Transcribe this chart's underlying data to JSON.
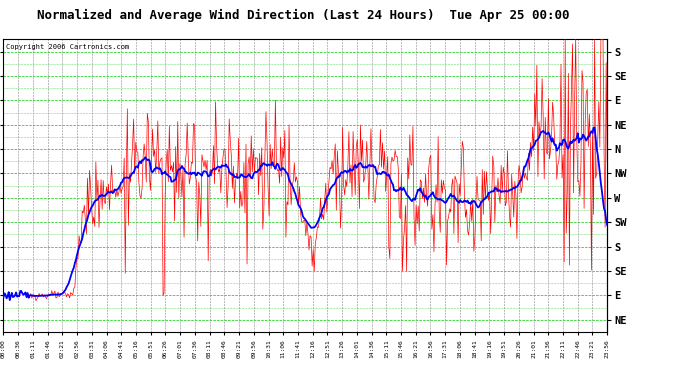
{
  "title": "Normalized and Average Wind Direction (Last 24 Hours)  Tue Apr 25 00:00",
  "copyright": "Copyright 2006 Cartronics.com",
  "outer_bg": "#ffffff",
  "plot_bg": "#ffffff",
  "grid_color_h": "#00cc00",
  "grid_color_v": "#009900",
  "title_color": "#000000",
  "red_line_color": "#ff0000",
  "blue_line_color": "#0000ff",
  "y_labels": [
    "S",
    "SE",
    "E",
    "NE",
    "N",
    "NW",
    "W",
    "SW",
    "S",
    "SE",
    "E",
    "NE"
  ],
  "y_label_values": [
    12,
    11,
    10,
    9,
    8,
    7,
    6,
    5,
    4,
    3,
    2,
    1
  ],
  "y_min": 0.5,
  "y_max": 12.5,
  "time_labels": [
    "00:00",
    "00:36",
    "01:11",
    "01:46",
    "02:21",
    "02:56",
    "03:31",
    "04:06",
    "04:41",
    "05:16",
    "05:51",
    "06:26",
    "07:01",
    "07:36",
    "08:11",
    "08:46",
    "09:21",
    "09:56",
    "10:31",
    "11:06",
    "11:41",
    "12:16",
    "12:51",
    "13:26",
    "14:01",
    "14:36",
    "15:11",
    "15:46",
    "16:21",
    "16:56",
    "17:31",
    "18:06",
    "18:41",
    "19:16",
    "19:51",
    "20:26",
    "21:01",
    "21:36",
    "22:11",
    "22:46",
    "23:21",
    "23:56"
  ]
}
